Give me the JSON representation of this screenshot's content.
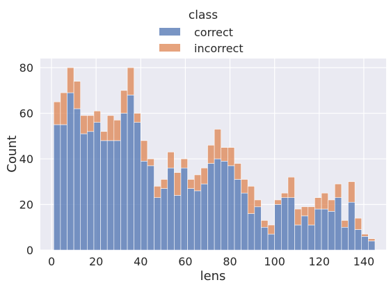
{
  "chart_data": {
    "type": "bar",
    "stacked": true,
    "xlabel": "lens",
    "ylabel": "Count",
    "xlim": [
      -5,
      150
    ],
    "ylim": [
      0,
      84
    ],
    "xticks": [
      0,
      20,
      40,
      60,
      80,
      100,
      120,
      140
    ],
    "yticks": [
      0,
      20,
      40,
      60,
      80
    ],
    "grid": true,
    "legend": {
      "title": "class",
      "placement": "top-center"
    },
    "bin_width": 3,
    "bin_starts": [
      1,
      4,
      7,
      10,
      13,
      16,
      19,
      22,
      25,
      28,
      31,
      34,
      37,
      40,
      43,
      46,
      49,
      52,
      55,
      58,
      61,
      64,
      67,
      70,
      73,
      76,
      79,
      82,
      85,
      88,
      91,
      94,
      97,
      100,
      103,
      106,
      109,
      112,
      115,
      118,
      121,
      124,
      127,
      130,
      133,
      136,
      139,
      142
    ],
    "series": [
      {
        "name": "correct",
        "color": "#4c72b0",
        "values": [
          55,
          55,
          69,
          62,
          51,
          52,
          56,
          48,
          48,
          48,
          60,
          68,
          56,
          39,
          37,
          23,
          27,
          36,
          24,
          36,
          27,
          26,
          29,
          38,
          40,
          39,
          37,
          31,
          25,
          16,
          19,
          10,
          7,
          20,
          23,
          23,
          11,
          15,
          11,
          18,
          18,
          17,
          23,
          10,
          21,
          9,
          6,
          4
        ]
      },
      {
        "name": "incorrect",
        "color": "#dd8452",
        "values": [
          10,
          14,
          11,
          12,
          8,
          7,
          5,
          4,
          11,
          9,
          10,
          12,
          4,
          9,
          3,
          5,
          4,
          7,
          10,
          4,
          4,
          7,
          7,
          8,
          13,
          6,
          8,
          7,
          6,
          12,
          3,
          3,
          4,
          2,
          2,
          9,
          7,
          4,
          8,
          5,
          7,
          5,
          6,
          3,
          9,
          5,
          1,
          1
        ]
      }
    ]
  }
}
